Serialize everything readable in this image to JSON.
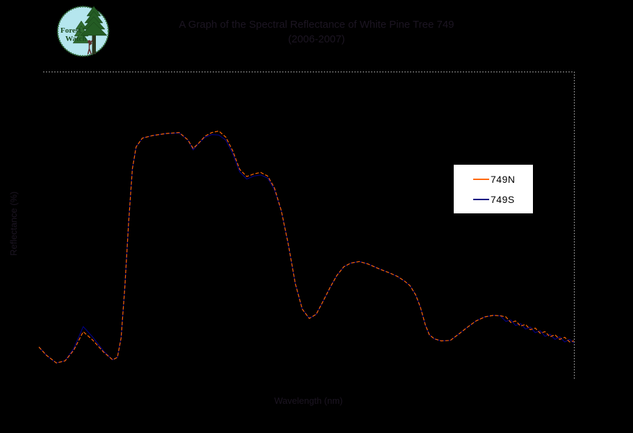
{
  "background_color": "#000000",
  "logo": {
    "line1": "Forest",
    "line2": "Watch",
    "circle_fill": "#b5e6ee",
    "ring_color": "#2e6b35",
    "tree_color": "#245c24",
    "tree_outline": "#153c15",
    "trunk_color": "#2a361f",
    "figure_color": "#5f3030",
    "text_color": "#1d4d22"
  },
  "title": {
    "line1": "A Graph of the Spectral Reflectance of White Pine Tree 749",
    "line2": "(2006-2007)"
  },
  "axes": {
    "x_label": "Wavelength (nm)",
    "y_label": "Reflectance (%)",
    "gridline_color": "#969696"
  },
  "legend": {
    "background": "#ffffff",
    "text_color": "#000000"
  },
  "chart_data": {
    "type": "line",
    "title": "A Graph of the Spectral Reflectance of White Pine Tree 749 (2006-2007)",
    "xlabel": "Wavelength (nm)",
    "ylabel": "Reflectance (%)",
    "xlim": [
      350,
      2500
    ],
    "ylim": [
      0,
      60
    ],
    "grid": "dotted border line at top and right edge only",
    "legend_position": "right-center",
    "x": [
      350,
      380,
      420,
      455,
      490,
      528,
      565,
      610,
      646,
      665,
      680,
      695,
      710,
      725,
      740,
      765,
      805,
      860,
      913,
      947,
      969,
      989,
      1017,
      1044,
      1072,
      1100,
      1128,
      1156,
      1184,
      1212,
      1240,
      1268,
      1295,
      1323,
      1351,
      1379,
      1407,
      1435,
      1463,
      1491,
      1518,
      1546,
      1574,
      1602,
      1636,
      1672,
      1714,
      1756,
      1789,
      1817,
      1839,
      1862,
      1881,
      1901,
      1917,
      1937,
      1965,
      2001,
      2034,
      2068,
      2104,
      2140,
      2174,
      2202,
      2224,
      2244,
      2263,
      2283,
      2303,
      2322,
      2342,
      2362,
      2381,
      2401,
      2421,
      2440,
      2460,
      2480,
      2497
    ],
    "series": [
      {
        "name": "749N",
        "color": "#FF6600",
        "values": [
          6.2,
          4.6,
          3.1,
          3.5,
          5.6,
          9.2,
          7.6,
          5.2,
          3.7,
          4.2,
          8.0,
          18.0,
          30.5,
          41.0,
          45.3,
          47.0,
          47.5,
          47.9,
          48.1,
          46.7,
          45.0,
          45.9,
          47.4,
          48.1,
          48.4,
          47.2,
          44.5,
          40.9,
          39.5,
          40.0,
          40.3,
          39.6,
          37.3,
          32.8,
          26.2,
          18.6,
          13.6,
          11.8,
          12.6,
          15.2,
          17.8,
          20.2,
          21.9,
          22.6,
          22.9,
          22.4,
          21.5,
          20.7,
          20.0,
          19.1,
          18.2,
          16.4,
          14.0,
          10.5,
          8.6,
          7.8,
          7.4,
          7.5,
          8.7,
          10.0,
          11.3,
          12.1,
          12.4,
          12.3,
          12.1,
          11.0,
          11.3,
          10.3,
          10.6,
          9.6,
          9.9,
          8.9,
          9.2,
          8.2,
          8.6,
          7.7,
          8.1,
          7.2,
          7.4
        ]
      },
      {
        "name": "749S",
        "color": "#000080",
        "values": [
          6.2,
          4.6,
          3.1,
          3.5,
          5.9,
          10.2,
          8.2,
          5.4,
          3.7,
          4.2,
          8.0,
          18.0,
          30.5,
          41.0,
          45.3,
          47.0,
          47.5,
          47.9,
          48.0,
          46.7,
          44.7,
          45.9,
          47.2,
          47.7,
          47.6,
          46.6,
          44.0,
          40.4,
          39.0,
          39.6,
          39.8,
          39.2,
          37.0,
          32.8,
          26.2,
          18.6,
          13.6,
          11.8,
          12.6,
          15.2,
          17.8,
          20.2,
          21.9,
          22.6,
          22.9,
          22.4,
          21.5,
          20.7,
          20.0,
          19.1,
          18.2,
          16.4,
          14.0,
          10.5,
          8.6,
          7.8,
          7.4,
          7.5,
          8.7,
          10.0,
          11.3,
          12.1,
          12.4,
          12.3,
          11.2,
          11.5,
          10.4,
          10.8,
          9.7,
          10.1,
          9.0,
          9.4,
          8.3,
          8.7,
          7.7,
          8.2,
          7.2,
          7.7,
          7.0
        ]
      }
    ]
  }
}
